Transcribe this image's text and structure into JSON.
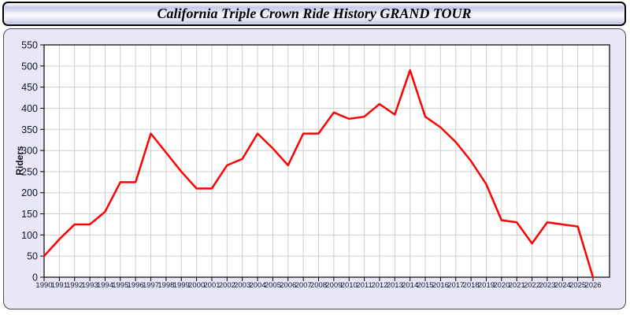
{
  "title": "California Triple Crown Ride History GRAND TOUR",
  "chart_data": {
    "type": "line",
    "title": "California Triple Crown Ride History GRAND TOUR",
    "xlabel": "",
    "ylabel": "Riders",
    "x": [
      1990,
      1991,
      1992,
      1993,
      1994,
      1995,
      1996,
      1997,
      1998,
      1999,
      2000,
      2001,
      2002,
      2003,
      2004,
      2005,
      2006,
      2007,
      2008,
      2009,
      2010,
      2011,
      2012,
      2013,
      2014,
      2015,
      2016,
      2017,
      2018,
      2019,
      2020,
      2021,
      2022,
      2023,
      2024,
      2025,
      2026
    ],
    "series": [
      {
        "name": "Riders",
        "values": [
          50,
          90,
          125,
          125,
          155,
          225,
          225,
          340,
          295,
          250,
          210,
          210,
          265,
          280,
          340,
          305,
          265,
          340,
          340,
          390,
          375,
          380,
          410,
          385,
          490,
          380,
          355,
          320,
          275,
          220,
          135,
          130,
          80,
          130,
          125,
          120,
          0
        ]
      }
    ],
    "ylim": [
      0,
      550
    ],
    "ytick_step": 50,
    "grid": true,
    "legend": "none",
    "line_color": "#ff0000",
    "plot_bg": "#ffffff",
    "panel_bg": "#e7e7f8",
    "grid_color": "#cdcdcd",
    "axis_color": "#000000",
    "tick_label_color": "#14142c"
  }
}
